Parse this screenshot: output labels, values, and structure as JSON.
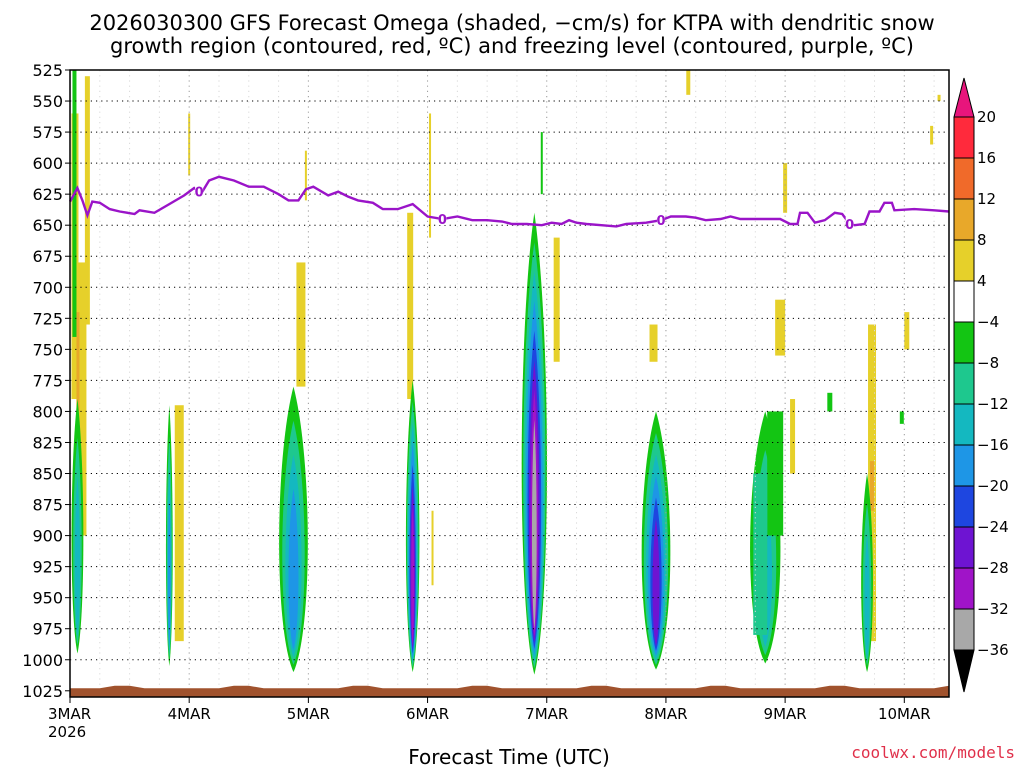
{
  "chart_data": {
    "type": "heatmap",
    "title_lines": [
      "2026030300 GFS Forecast Omega (shaded, −cm/s) for KTPA with dendritic snow",
      "growth region (contoured, red, ºC) and freezing level (contoured, purple, ºC)"
    ],
    "xlabel": "Forecast Time (UTC)",
    "credit": "coolwx.com/models",
    "x_range_hours": [
      0,
      177
    ],
    "x_ticks": [
      {
        "label": "3MAR",
        "sub": "2026",
        "hour": 0
      },
      {
        "label": "4MAR",
        "sub": "",
        "hour": 24
      },
      {
        "label": "5MAR",
        "sub": "",
        "hour": 48
      },
      {
        "label": "6MAR",
        "sub": "",
        "hour": 72
      },
      {
        "label": "7MAR",
        "sub": "",
        "hour": 96
      },
      {
        "label": "8MAR",
        "sub": "",
        "hour": 120
      },
      {
        "label": "9MAR",
        "sub": "",
        "hour": 144
      },
      {
        "label": "10MAR",
        "sub": "",
        "hour": 168
      }
    ],
    "y_range_hpa": [
      525,
      1030
    ],
    "y_ticks": [
      525,
      550,
      575,
      600,
      625,
      650,
      675,
      700,
      725,
      750,
      775,
      800,
      825,
      850,
      875,
      900,
      925,
      950,
      975,
      1000,
      1025
    ],
    "grid": true,
    "colorbar": {
      "labels": [
        "20",
        "16",
        "12",
        "8",
        "4",
        "−4",
        "−8",
        "−12",
        "−16",
        "−20",
        "−24",
        "−28",
        "−32",
        "−36"
      ],
      "colors": [
        "#ff2a3c",
        "#f06a2a",
        "#e8a82a",
        "#e6d02a",
        "#ffffff",
        "#13c513",
        "#1ec88e",
        "#14b8c0",
        "#1e96e6",
        "#1e46e0",
        "#6e14d2",
        "#a014c8",
        "#a8a8a8"
      ],
      "over_color": "#e8157c",
      "under_color": "#000000"
    },
    "series": [
      {
        "name": "Freezing level (0 ºC)",
        "color": "#9a14c8",
        "contour_label": "0",
        "label_hours": [
          26,
          75,
          119,
          157
        ],
        "points": [
          [
            0,
            631
          ],
          [
            1.5,
            620
          ],
          [
            2.5,
            630
          ],
          [
            3.5,
            642
          ],
          [
            4.5,
            631
          ],
          [
            6,
            632
          ],
          [
            8,
            637
          ],
          [
            10,
            639
          ],
          [
            13,
            641
          ],
          [
            14,
            638
          ],
          [
            17,
            640
          ],
          [
            20,
            633
          ],
          [
            23,
            626
          ],
          [
            25,
            620
          ],
          [
            26.5,
            624
          ],
          [
            28,
            614
          ],
          [
            30,
            611
          ],
          [
            33,
            614
          ],
          [
            36,
            619
          ],
          [
            39,
            619
          ],
          [
            42,
            625
          ],
          [
            44,
            630
          ],
          [
            46,
            630
          ],
          [
            47.5,
            621
          ],
          [
            49,
            619
          ],
          [
            52,
            626
          ],
          [
            54,
            623
          ],
          [
            56,
            627
          ],
          [
            58,
            630
          ],
          [
            61,
            632
          ],
          [
            63,
            637
          ],
          [
            66,
            637
          ],
          [
            69,
            633
          ],
          [
            72,
            643
          ],
          [
            75,
            645
          ],
          [
            78,
            643
          ],
          [
            81,
            646
          ],
          [
            84,
            646
          ],
          [
            87,
            647
          ],
          [
            89,
            649
          ],
          [
            92,
            649
          ],
          [
            95,
            650
          ],
          [
            97,
            648
          ],
          [
            99,
            649
          ],
          [
            100.5,
            646
          ],
          [
            102,
            648
          ],
          [
            104,
            649
          ],
          [
            107,
            650
          ],
          [
            110,
            651
          ],
          [
            112,
            649
          ],
          [
            116,
            648
          ],
          [
            119,
            646
          ],
          [
            121,
            643
          ],
          [
            124,
            643
          ],
          [
            126,
            644
          ],
          [
            128,
            646
          ],
          [
            131,
            645
          ],
          [
            133,
            643
          ],
          [
            135,
            645
          ],
          [
            138,
            645
          ],
          [
            141,
            645
          ],
          [
            143,
            645
          ],
          [
            145,
            649
          ],
          [
            146.5,
            649
          ],
          [
            147,
            640
          ],
          [
            148.5,
            640
          ],
          [
            150,
            648
          ],
          [
            152,
            646
          ],
          [
            154,
            640
          ],
          [
            155.5,
            641
          ],
          [
            157,
            649
          ],
          [
            158,
            650
          ],
          [
            160,
            649
          ],
          [
            161,
            639
          ],
          [
            163,
            639
          ],
          [
            164,
            632
          ],
          [
            165.5,
            632
          ],
          [
            166,
            638
          ],
          [
            170,
            637
          ],
          [
            174,
            638
          ],
          [
            177,
            639
          ]
        ]
      }
    ],
    "ground_band_color": "#a0522d",
    "precip_panels": [
      {
        "at_hour": 1.5,
        "top_hpa": 790,
        "bottom_hpa": 995,
        "peak": "−12"
      },
      {
        "at_hour": 20,
        "top_hpa": 795,
        "bottom_hpa": 1005,
        "peak": "−16"
      },
      {
        "at_hour": 45,
        "top_hpa": 780,
        "bottom_hpa": 1010,
        "peak": "−16"
      },
      {
        "at_hour": 69,
        "top_hpa": 775,
        "bottom_hpa": 1010,
        "peak": "−28"
      },
      {
        "at_hour": 93.5,
        "top_hpa": 640,
        "bottom_hpa": 1012,
        "peak": "−32"
      },
      {
        "at_hour": 118,
        "top_hpa": 800,
        "bottom_hpa": 1008,
        "peak": "−24"
      },
      {
        "at_hour": 140,
        "top_hpa": 800,
        "bottom_hpa": 1003,
        "peak": "−12"
      },
      {
        "at_hour": 160.5,
        "top_hpa": 850,
        "bottom_hpa": 1010,
        "peak": "−12"
      }
    ]
  }
}
